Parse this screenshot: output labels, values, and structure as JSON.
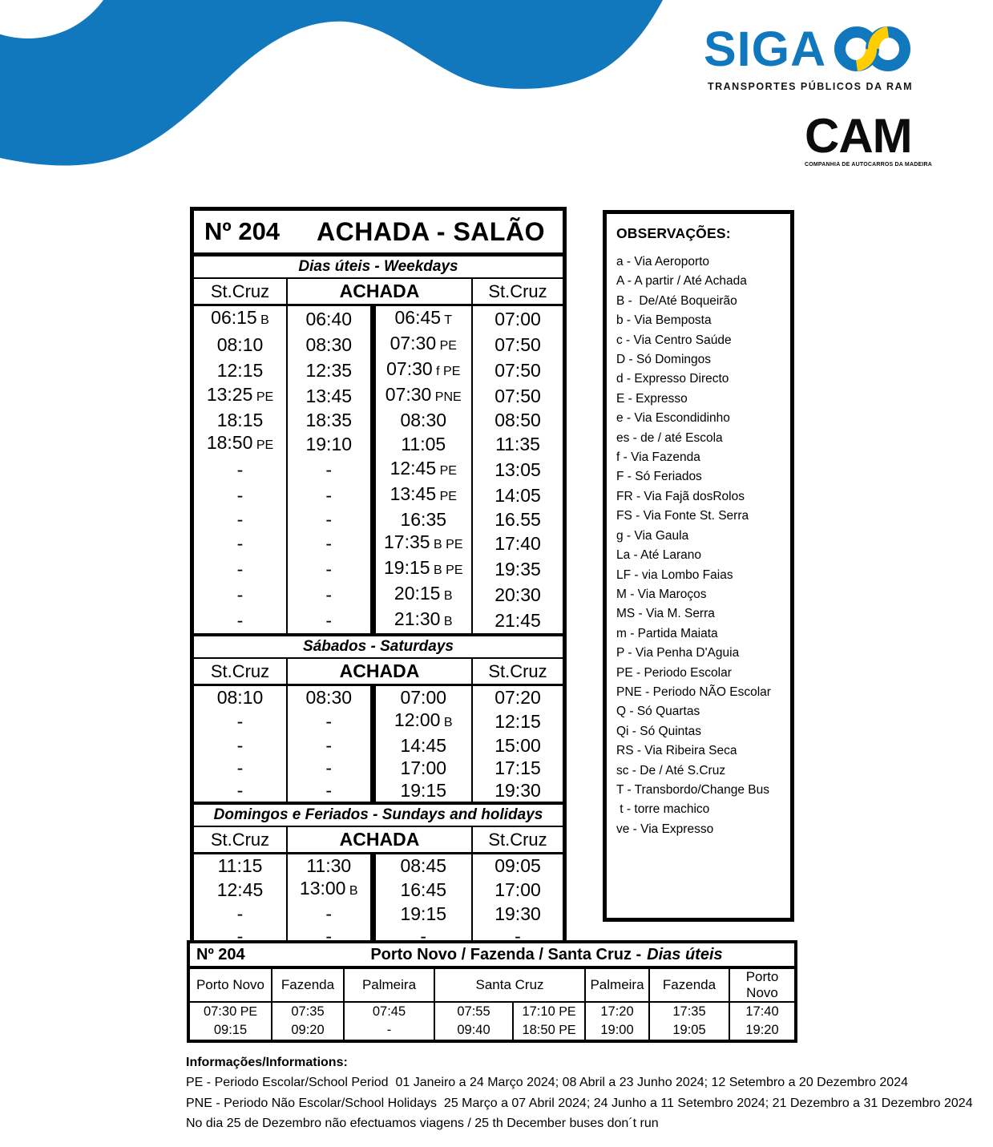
{
  "colors": {
    "blue": "#1278be",
    "yellow": "#ffcd00"
  },
  "logos": {
    "siga": {
      "text": "SIGA",
      "tagline": "TRANSPORTES PÚBLICOS DA RAM"
    },
    "cam": {
      "text": "CAM",
      "tagline": "COMPANHIA DE AUTOCARROS DA MADEIRA"
    }
  },
  "main_table": {
    "number": "Nº 204",
    "route": "ACHADA - SALÃO",
    "columns": [
      "St.Cruz",
      "ACHADA",
      "St.Cruz"
    ],
    "sections": [
      {
        "banner": "Dias úteis - Weekdays",
        "rows": [
          [
            "06:15 B",
            "06:40",
            "06:45 T",
            "07:00"
          ],
          [
            "08:10",
            "08:30",
            "07:30 PE",
            "07:50"
          ],
          [
            "12:15",
            "12:35",
            "07:30 f PE",
            "07:50"
          ],
          [
            "13:25 PE",
            "13:45",
            "07:30 PNE",
            "07:50"
          ],
          [
            "18:15",
            "18:35",
            "08:30",
            "08:50"
          ],
          [
            "18:50 PE",
            "19:10",
            "11:05",
            "11:35"
          ],
          [
            "-",
            "-",
            "12:45 PE",
            "13:05"
          ],
          [
            "-",
            "-",
            "13:45 PE",
            "14:05"
          ],
          [
            "-",
            "-",
            "16:35",
            "16.55"
          ],
          [
            "-",
            "-",
            "17:35 B PE",
            "17:40"
          ],
          [
            "-",
            "-",
            "19:15 B PE",
            "19:35"
          ],
          [
            "-",
            "-",
            "20:15 B",
            "20:30"
          ],
          [
            "-",
            "-",
            "21:30 B",
            "21:45"
          ]
        ]
      },
      {
        "banner": "Sábados - Saturdays",
        "rows": [
          [
            "08:10",
            "08:30",
            "07:00",
            "07:20"
          ],
          [
            "-",
            "-",
            "12:00 B",
            "12:15"
          ],
          [
            "-",
            "-",
            "14:45",
            "15:00"
          ],
          [
            "-",
            "-",
            "17:00",
            "17:15"
          ],
          [
            "-",
            "-",
            "19:15",
            "19:30"
          ]
        ]
      },
      {
        "banner": "Domingos e Feriados - Sundays and holidays",
        "rows": [
          [
            "11:15",
            "11:30",
            "08:45",
            "09:05"
          ],
          [
            "12:45",
            "13:00 B",
            "16:45",
            "17:00"
          ],
          [
            "-",
            "-",
            "19:15",
            "19:30"
          ],
          [
            "-",
            "-",
            "-",
            "-"
          ],
          [
            "-",
            "-",
            "-",
            "-"
          ]
        ]
      }
    ]
  },
  "observations": {
    "heading": "OBSERVAÇÕES:",
    "items": [
      "a - Via Aeroporto",
      "A - A partir / Até Achada",
      "B -  De/Até Boqueirão",
      "b - Via Bemposta",
      "c - Via Centro Saúde",
      "D - Só Domingos",
      "d - Expresso Directo",
      "E - Expresso",
      "e - Via Escondidinho",
      "es - de / até Escola",
      "f - Via Fazenda",
      "F - Só Feriados",
      "FR - Via Fajã dosRolos",
      "FS - Via Fonte St. Serra",
      "g - Via Gaula",
      "La - Até Larano",
      "LF - via Lombo Faias",
      "M - Via Maroços",
      "MS - Via M. Serra",
      "m - Partida Maiata",
      "P - Via Penha D'Aguia",
      "PE - Periodo Escolar",
      "PNE - Periodo NÃO Escolar",
      "Q - Só Quartas",
      "Qi - Só Quintas",
      "RS - Via Ribeira Seca",
      "sc - De / Até S.Cruz",
      "T - Transbordo/Change Bus",
      " t - torre machico",
      "ve - Via Expresso"
    ]
  },
  "bottom_table": {
    "number": "Nº 204",
    "route_bold": "Porto Novo / Fazenda / Santa Cruz -",
    "route_italic": "Dias úteis",
    "headers": [
      {
        "label": "Porto Novo",
        "span": 1
      },
      {
        "label": "Fazenda",
        "span": 1
      },
      {
        "label": "Palmeira",
        "span": 1
      },
      {
        "label": "Santa Cruz",
        "span": 2
      },
      {
        "label": "Palmeira",
        "span": 1
      },
      {
        "label": "Fazenda",
        "span": 1
      },
      {
        "label": "Porto Novo",
        "span": 1
      }
    ],
    "rows": [
      [
        "07:30 PE",
        "07:35",
        "07:45",
        "07:55",
        "17:10 PE",
        "17:20",
        "17:35",
        "17:40"
      ],
      [
        "09:15",
        "09:20",
        "-",
        "09:40",
        "18:50 PE",
        "19:00",
        "19:05",
        "19:20"
      ]
    ]
  },
  "footer": {
    "heading": "Informações/Informations:",
    "lines": [
      "PE - Periodo Escolar/School Period  01 Janeiro a 24 Março 2024; 08 Abril a 23 Junho 2024; 12 Setembro a 20 Dezembro 2024",
      "PNE - Periodo Não Escolar/School Holidays  25 Março a 07 Abril 2024; 24 Junho a 11 Setembro 2024; 21 Dezembro a 31 Dezembro 2024",
      "No dia 25 de Dezembro não efectuamos viagens / 25 th December buses don´t run"
    ]
  }
}
